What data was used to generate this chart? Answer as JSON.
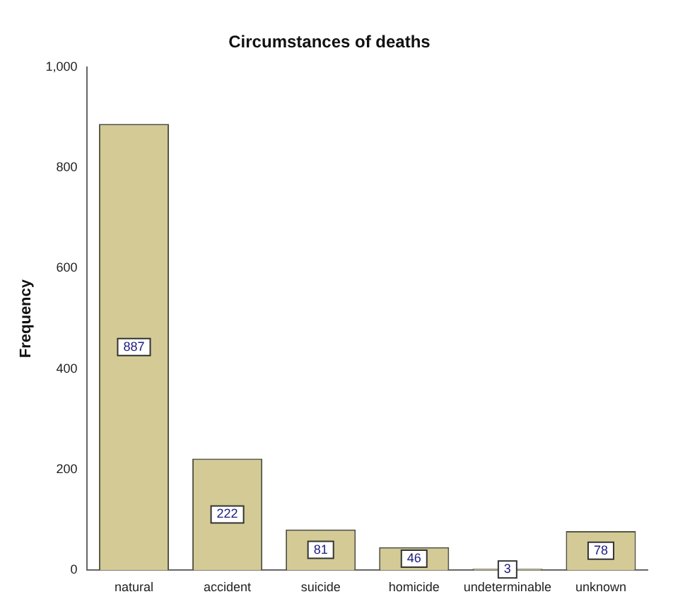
{
  "chart_data": {
    "type": "bar",
    "title": "Circumstances of deaths",
    "ylabel": "Frequency",
    "categories": [
      "natural",
      "accident",
      "suicide",
      "homicide",
      "undeterminable",
      "unknown"
    ],
    "values": [
      887,
      222,
      81,
      46,
      3,
      78
    ],
    "color": "#d3ca96",
    "ylim": [
      0,
      1000
    ],
    "yticks": [
      0,
      200,
      400,
      600,
      800,
      {
        "value": 1000,
        "label": "1,000"
      }
    ],
    "data_labels": true,
    "grid": false,
    "legend": false
  }
}
